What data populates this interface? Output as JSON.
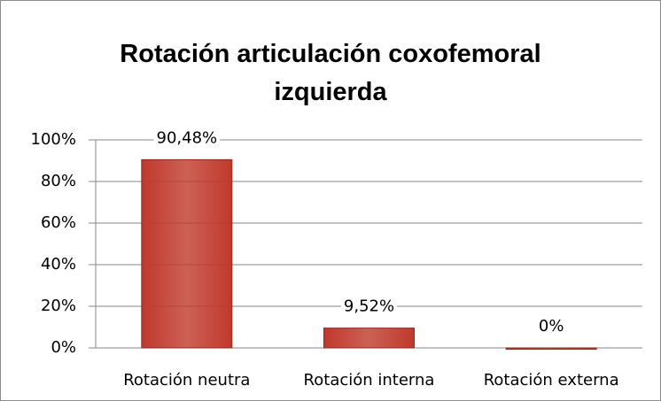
{
  "chart_data": {
    "type": "bar",
    "title": "Rotación articulación coxofemoral izquierda",
    "categories": [
      "Rotación neutra",
      "Rotación interna",
      "Rotación externa"
    ],
    "values": [
      90.48,
      9.52,
      0
    ],
    "value_labels": [
      "90,48%",
      "9,52%",
      "0%"
    ],
    "color": "#c0392b",
    "ylim": [
      0,
      100
    ],
    "yticks": [
      {
        "value": 0,
        "label": "0%"
      },
      {
        "value": 20,
        "label": "20%"
      },
      {
        "value": 40,
        "label": "40%"
      },
      {
        "value": 60,
        "label": "60%"
      },
      {
        "value": 80,
        "label": "80%"
      },
      {
        "value": 100,
        "label": "100%"
      }
    ],
    "grid": true
  }
}
